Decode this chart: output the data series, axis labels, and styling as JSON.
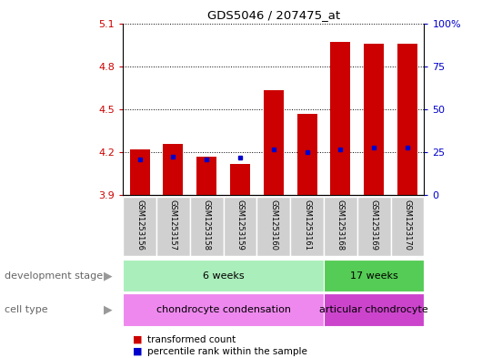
{
  "title": "GDS5046 / 207475_at",
  "samples": [
    "GSM1253156",
    "GSM1253157",
    "GSM1253158",
    "GSM1253159",
    "GSM1253160",
    "GSM1253161",
    "GSM1253168",
    "GSM1253169",
    "GSM1253170"
  ],
  "bar_bottom": 3.9,
  "transformed_count": [
    4.22,
    4.26,
    4.17,
    4.12,
    4.63,
    4.47,
    4.97,
    4.96,
    4.96
  ],
  "percentile_rank_val": [
    4.15,
    4.17,
    4.15,
    4.16,
    4.22,
    4.2,
    4.22,
    4.23,
    4.23
  ],
  "ylim": [
    3.9,
    5.1
  ],
  "yticks_left": [
    3.9,
    4.2,
    4.5,
    4.8,
    5.1
  ],
  "yticks_right_pct": [
    0,
    25,
    50,
    75,
    100
  ],
  "left_tick_color": "#cc0000",
  "right_tick_color": "#0000cc",
  "bar_color": "#cc0000",
  "percentile_color": "#0000cc",
  "bar_width": 0.6,
  "sample_box_color": "#d0d0d0",
  "dev_groups": [
    {
      "label": "6 weeks",
      "start": 0,
      "end": 6,
      "color": "#aaeebb"
    },
    {
      "label": "17 weeks",
      "start": 6,
      "end": 9,
      "color": "#55cc55"
    }
  ],
  "cell_groups": [
    {
      "label": "chondrocyte condensation",
      "start": 0,
      "end": 6,
      "color": "#ee88ee"
    },
    {
      "label": "articular chondrocyte",
      "start": 6,
      "end": 9,
      "color": "#cc44cc"
    }
  ],
  "dev_stage_label": "development stage",
  "cell_type_label": "cell type",
  "legend_bar_label": "transformed count",
  "legend_pct_label": "percentile rank within the sample"
}
